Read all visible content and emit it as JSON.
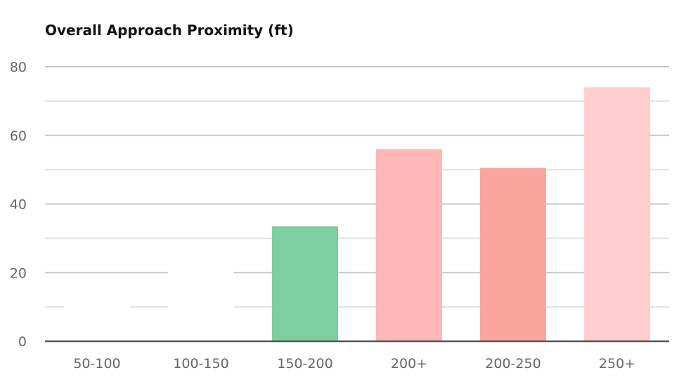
{
  "chart_data": {
    "type": "bar",
    "title": "Overall Approach Proximity (ft)",
    "xlabel": "",
    "ylabel": "",
    "categories": [
      "50-100",
      "100-150",
      "150-200",
      "200+",
      "200-250",
      "250+"
    ],
    "values": [
      15,
      25,
      33.5,
      56,
      50.5,
      74
    ],
    "colors": [
      "#ffffff",
      "#ffffff",
      "#7dcea0",
      "#ffb6b6",
      "#fca59e",
      "#ffcdd0"
    ],
    "ylim": [
      0,
      80
    ],
    "yticks": [
      0,
      20,
      40,
      60,
      80
    ],
    "minor_grid_step": 10,
    "grid": true,
    "legend": "none"
  }
}
